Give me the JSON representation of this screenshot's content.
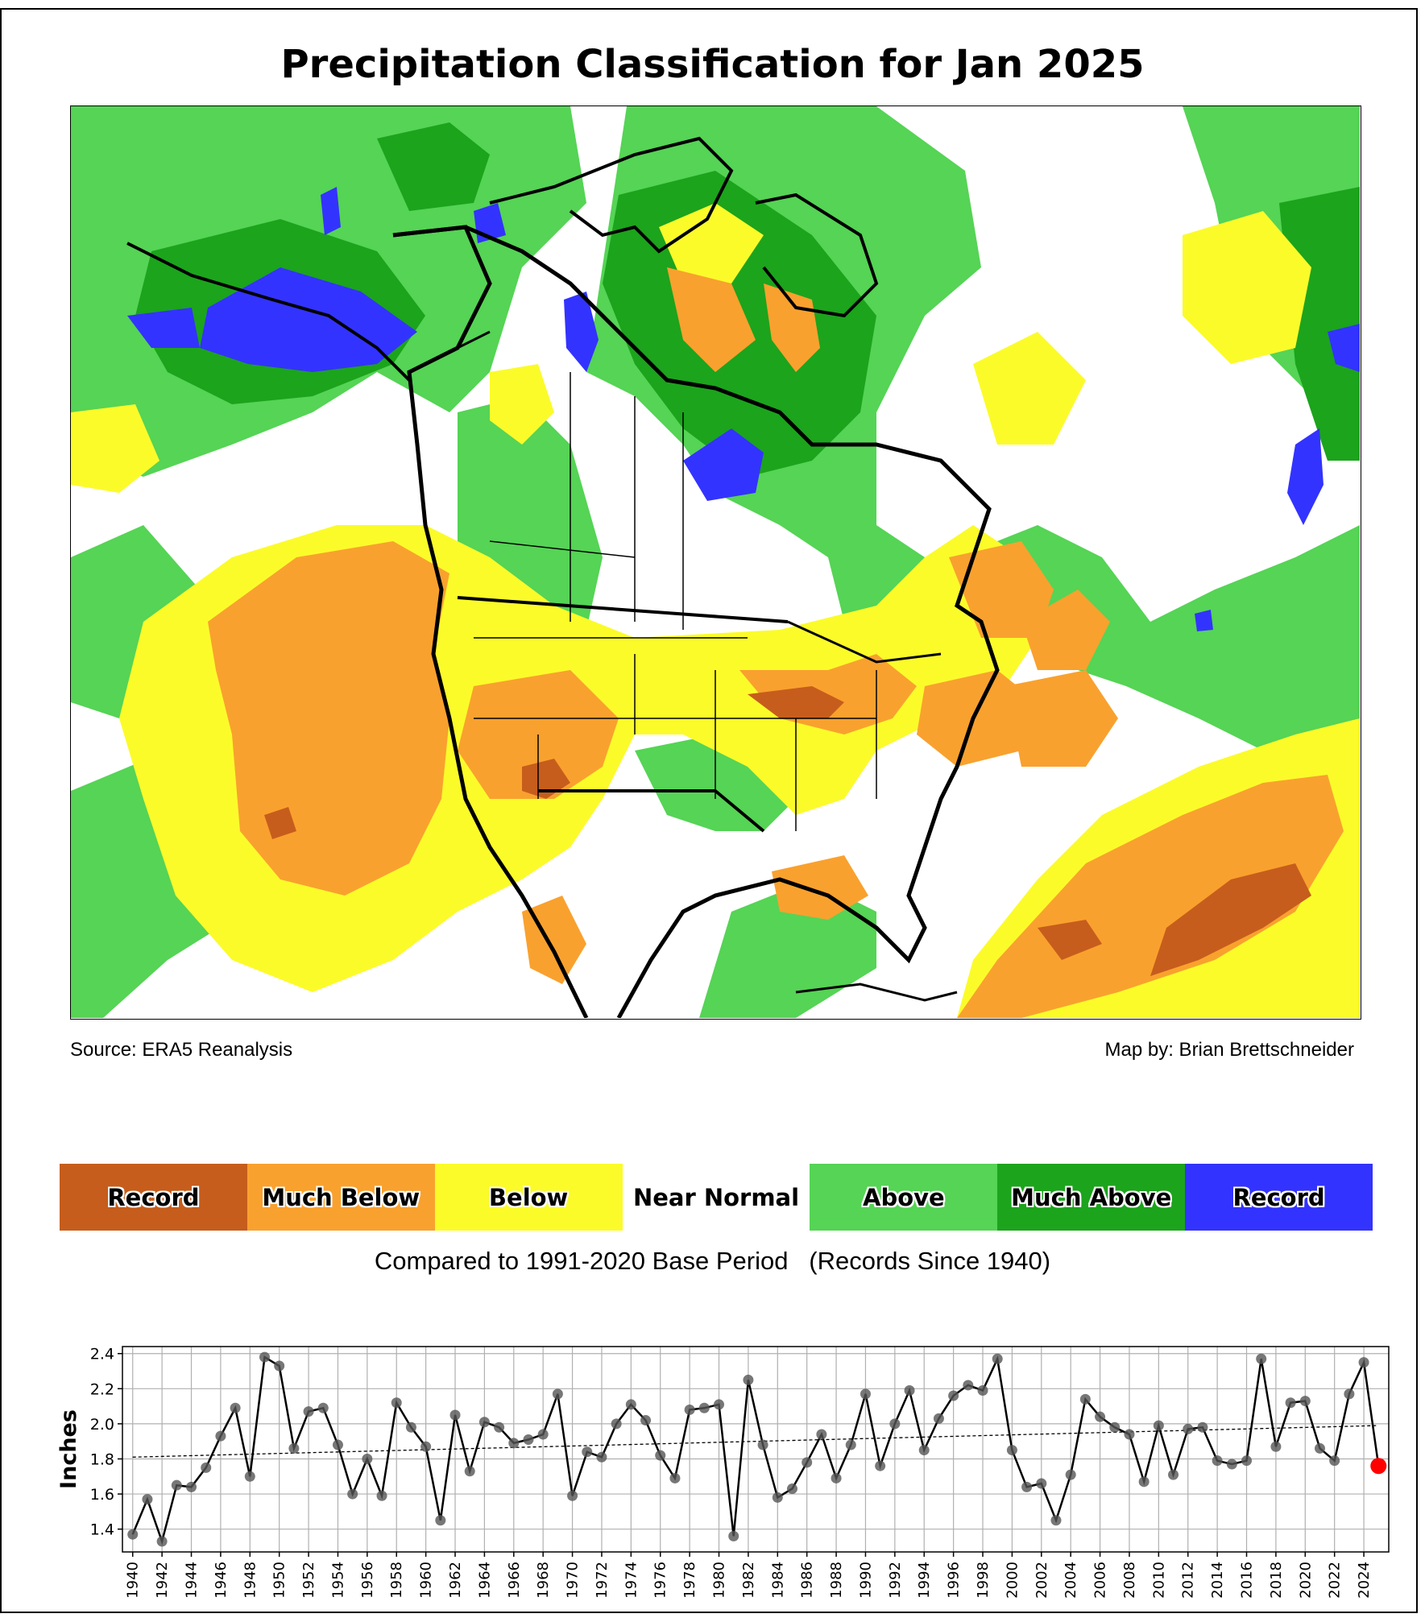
{
  "title": "Precipitation Classification for Jan 2025",
  "credits": {
    "source": "Source: ERA5 Reanalysis",
    "author": "Map by: Brian Brettschneider"
  },
  "legend": {
    "items": [
      {
        "label": "Record",
        "color": "#c65d1c"
      },
      {
        "label": "Much Below",
        "color": "#f9a12e"
      },
      {
        "label": "Below",
        "color": "#fbfb2a"
      },
      {
        "label": "Near Normal",
        "color": "#ffffff"
      },
      {
        "label": "Above",
        "color": "#55d455"
      },
      {
        "label": "Much Above",
        "color": "#1ca41c"
      },
      {
        "label": "Record",
        "color": "#3333ff"
      }
    ],
    "caption": "Compared to 1991-2020 Base Period   (Records Since 1940)"
  },
  "chart_data": {
    "type": "line",
    "ylabel": "Inches",
    "xlabel": "",
    "ylim": [
      1.27,
      2.44
    ],
    "xlim": [
      1939.3,
      2025.7
    ],
    "yticks": [
      1.4,
      1.6,
      1.8,
      2.0,
      2.2,
      2.4
    ],
    "xticks": [
      1940,
      1942,
      1944,
      1946,
      1948,
      1950,
      1952,
      1954,
      1956,
      1958,
      1960,
      1962,
      1964,
      1966,
      1968,
      1970,
      1972,
      1974,
      1976,
      1978,
      1980,
      1982,
      1984,
      1986,
      1988,
      1990,
      1992,
      1994,
      1996,
      1998,
      2000,
      2002,
      2004,
      2006,
      2008,
      2010,
      2012,
      2014,
      2016,
      2018,
      2020,
      2022,
      2024
    ],
    "grid": true,
    "x": [
      1940,
      1941,
      1942,
      1943,
      1944,
      1945,
      1946,
      1947,
      1948,
      1949,
      1950,
      1951,
      1952,
      1953,
      1954,
      1955,
      1956,
      1957,
      1958,
      1959,
      1960,
      1961,
      1962,
      1963,
      1964,
      1965,
      1966,
      1967,
      1968,
      1969,
      1970,
      1971,
      1972,
      1973,
      1974,
      1975,
      1976,
      1977,
      1978,
      1979,
      1980,
      1981,
      1982,
      1983,
      1984,
      1985,
      1986,
      1987,
      1988,
      1989,
      1990,
      1991,
      1992,
      1993,
      1994,
      1995,
      1996,
      1997,
      1998,
      1999,
      2000,
      2001,
      2002,
      2003,
      2004,
      2005,
      2006,
      2007,
      2008,
      2009,
      2010,
      2011,
      2012,
      2013,
      2014,
      2015,
      2016,
      2017,
      2018,
      2019,
      2020,
      2021,
      2022,
      2023,
      2024,
      2025
    ],
    "y": [
      1.37,
      1.57,
      1.33,
      1.65,
      1.64,
      1.75,
      1.93,
      2.09,
      1.7,
      2.38,
      2.33,
      1.86,
      2.07,
      2.09,
      1.88,
      1.6,
      1.8,
      1.59,
      2.12,
      1.98,
      1.87,
      1.45,
      2.05,
      1.73,
      2.01,
      1.98,
      1.89,
      1.91,
      1.94,
      2.17,
      1.59,
      1.84,
      1.81,
      2.0,
      2.11,
      2.02,
      1.82,
      1.69,
      2.08,
      2.09,
      2.11,
      1.36,
      2.25,
      1.88,
      1.58,
      1.63,
      1.78,
      1.94,
      1.69,
      1.88,
      2.17,
      1.76,
      2.0,
      2.19,
      1.85,
      2.03,
      2.16,
      2.22,
      2.19,
      2.37,
      1.85,
      1.64,
      1.66,
      1.45,
      1.71,
      2.14,
      2.04,
      1.98,
      1.94,
      1.67,
      1.99,
      1.71,
      1.97,
      1.98,
      1.79,
      1.77,
      1.79,
      2.37,
      1.87,
      2.12,
      2.13,
      1.86,
      1.79,
      2.17,
      2.35,
      1.76
    ],
    "trend": {
      "x": [
        1940,
        2025
      ],
      "y": [
        1.81,
        1.99
      ]
    },
    "highlight": {
      "x": 2025,
      "y": 1.76,
      "color": "#ff0000"
    },
    "line_color": "#000000",
    "marker_color": "#555555"
  }
}
